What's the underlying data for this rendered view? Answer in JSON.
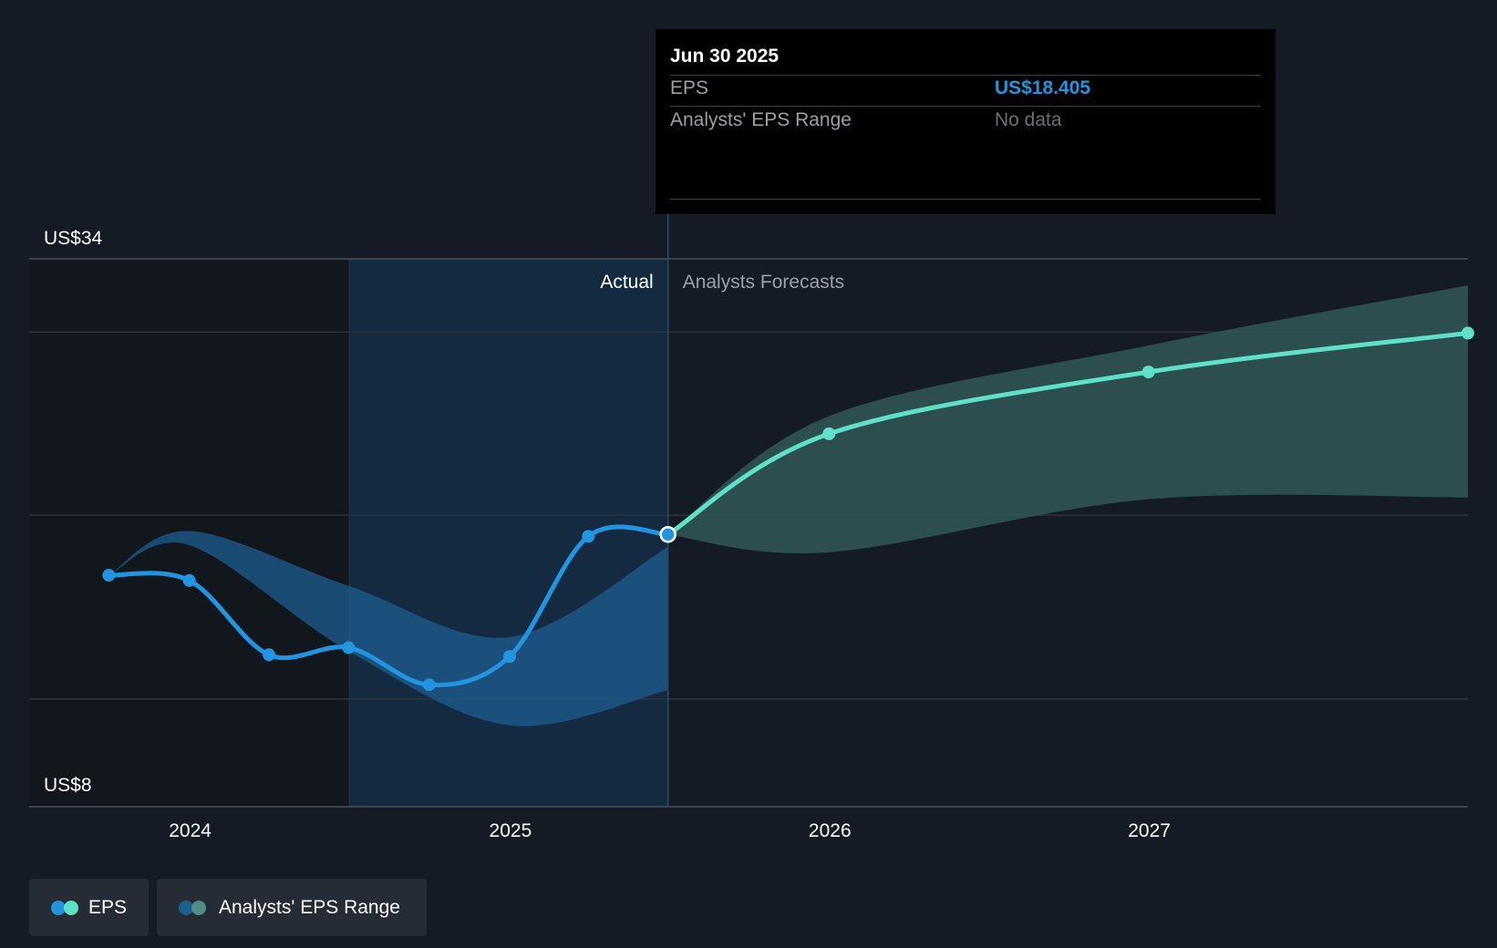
{
  "colors": {
    "background": "#151b24",
    "eps_actual": "#2394df",
    "eps_forecast": "#5fe1c8",
    "range_actual": "#1e5e8f",
    "range_forecast": "#2f5454",
    "actual_highlight": "#132a40"
  },
  "tooltip": {
    "date": "Jun 30 2025",
    "eps_label": "EPS",
    "eps_value": "US$18.405",
    "range_label": "Analysts' EPS Range",
    "range_value": "No data"
  },
  "legend": {
    "eps_label": "EPS",
    "range_label": "Analysts' EPS Range"
  },
  "chart_data": {
    "type": "line",
    "region_labels": {
      "actual": "Actual",
      "forecast": "Analysts Forecasts"
    },
    "y_ticks": [
      {
        "value": 34,
        "label": "US$34"
      },
      {
        "value": 8,
        "label": "US$8"
      }
    ],
    "x_ticks": [
      {
        "x": "2024-01-01",
        "label": "2024"
      },
      {
        "x": "2025-01-01",
        "label": "2025"
      },
      {
        "x": "2026-01-01",
        "label": "2026"
      },
      {
        "x": "2027-01-01",
        "label": "2027"
      }
    ],
    "ylim": [
      3,
      34
    ],
    "xlim": [
      "2023-07-01",
      "2027-12-31"
    ],
    "actual_start": "2024-07-01",
    "actual_end": "2025-06-30",
    "grid": true,
    "legend_position": "bottom-left",
    "series": [
      {
        "name": "EPS",
        "points": [
          {
            "x": "2023-09-30",
            "y": 16.1
          },
          {
            "x": "2023-12-31",
            "y": 15.8
          },
          {
            "x": "2024-03-31",
            "y": 11.6
          },
          {
            "x": "2024-06-30",
            "y": 12.0
          },
          {
            "x": "2024-09-30",
            "y": 9.9
          },
          {
            "x": "2024-12-31",
            "y": 11.5
          },
          {
            "x": "2025-03-31",
            "y": 18.3
          },
          {
            "x": "2025-06-30",
            "y": 18.405
          }
        ]
      },
      {
        "name": "EPS",
        "points": [
          {
            "x": "2025-06-30",
            "y": 18.405
          },
          {
            "x": "2025-12-31",
            "y": 24.1
          },
          {
            "x": "2026-12-31",
            "y": 27.6
          },
          {
            "x": "2027-12-31",
            "y": 29.8
          }
        ]
      },
      {
        "name": "Analysts' EPS Range",
        "points": [
          {
            "x": "2023-09-30",
            "low": 16.1,
            "high": 16.1
          },
          {
            "x": "2023-12-31",
            "low": 17.8,
            "high": 18.6
          },
          {
            "x": "2024-06-30",
            "low": 11.8,
            "high": 15.5
          },
          {
            "x": "2024-12-31",
            "low": 7.6,
            "high": 12.6
          },
          {
            "x": "2025-06-30",
            "low": 9.6,
            "high": 17.7
          }
        ]
      },
      {
        "name": "Analysts' EPS Range",
        "points": [
          {
            "x": "2025-06-30",
            "low": 18.4,
            "high": 18.4
          },
          {
            "x": "2025-12-31",
            "low": 17.4,
            "high": 25.1
          },
          {
            "x": "2026-12-31",
            "low": 20.4,
            "high": 29.1
          },
          {
            "x": "2027-12-31",
            "low": 20.5,
            "high": 32.5
          }
        ]
      }
    ]
  }
}
